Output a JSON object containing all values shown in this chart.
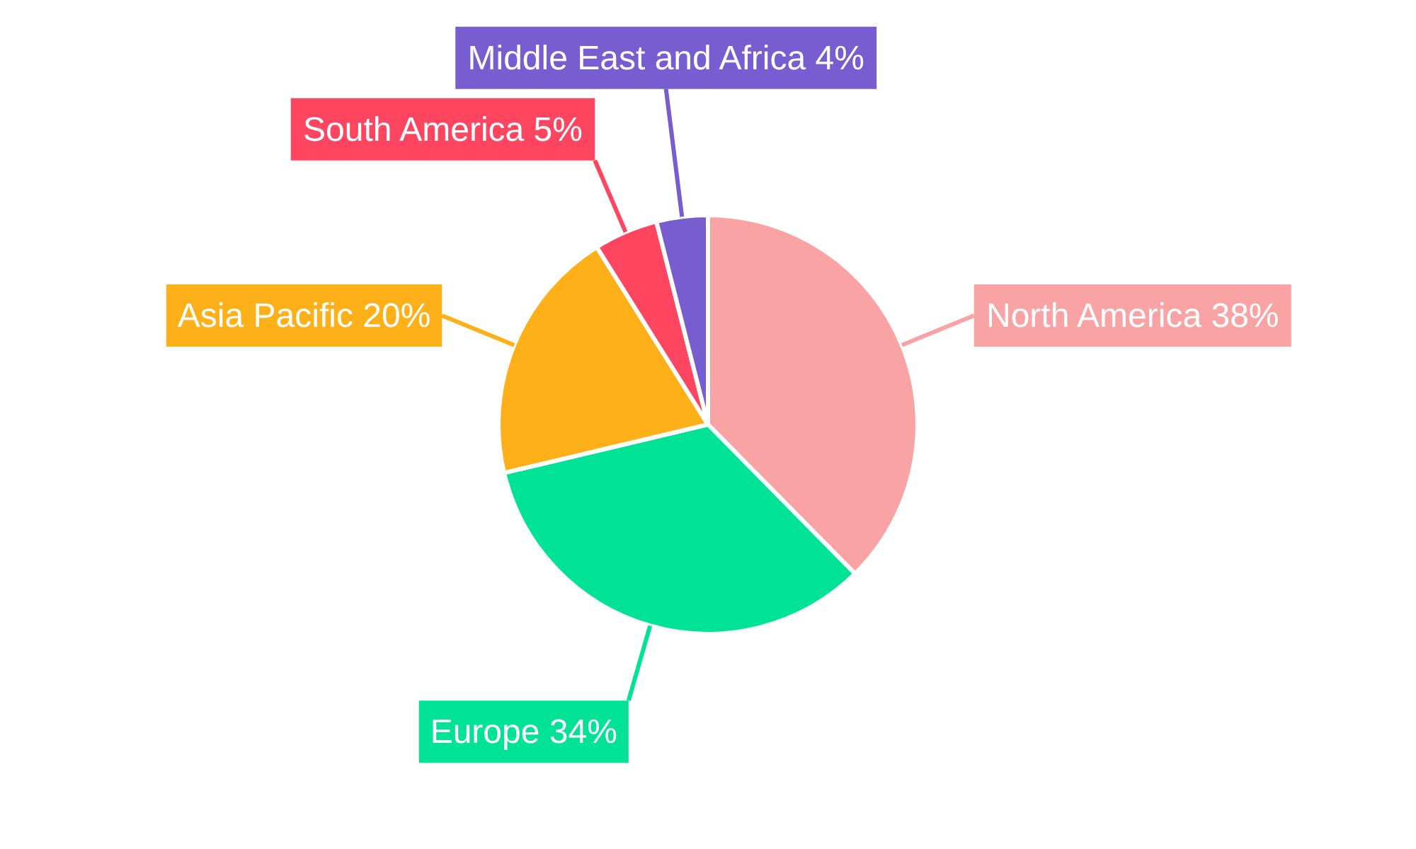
{
  "chart_data": {
    "type": "pie",
    "categories": [
      "North America",
      "Europe",
      "Asia Pacific",
      "South America",
      "Middle East and Africa"
    ],
    "values": [
      38,
      34,
      20,
      5,
      4
    ],
    "value_labels": [
      "38%",
      "34%",
      "20%",
      "5%",
      "4%"
    ],
    "colors": [
      "#f9a3a4",
      "#00e396",
      "#feb019",
      "#ff4560",
      "#775dd0"
    ]
  }
}
